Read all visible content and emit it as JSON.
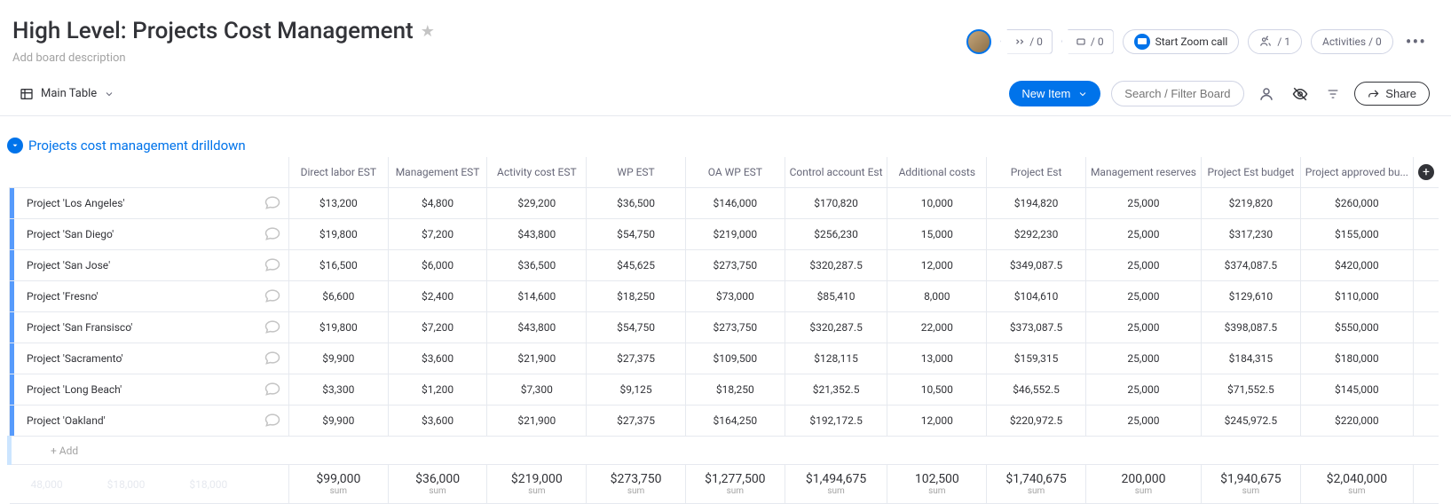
{
  "header": {
    "title": "High Level: Projects Cost Management",
    "desc_placeholder": "Add board description",
    "zoom_label": "Start Zoom call",
    "pill1": "/ 0",
    "pill2": "/ 0",
    "members": "/ 1",
    "activities": "Activities / 0"
  },
  "toolbar": {
    "view_label": "Main Table",
    "new_item": "New Item",
    "search_placeholder": "Search / Filter Board",
    "share": "Share"
  },
  "group": {
    "title": "Projects cost management drilldown",
    "add_label": "+ Add"
  },
  "columns": [
    "Direct labor EST",
    "Management EST",
    "Activity cost EST",
    "WP EST",
    "OA WP EST",
    "Control account Est",
    "Additional costs",
    "Project Est",
    "Management reserves",
    "Project Est budget",
    "Project approved bu..."
  ],
  "rows": [
    {
      "name": "Project 'Los Angeles'",
      "vals": [
        "$13,200",
        "$4,800",
        "$29,200",
        "$36,500",
        "$146,000",
        "$170,820",
        "10,000",
        "$194,820",
        "25,000",
        "$219,820",
        "$260,000"
      ]
    },
    {
      "name": "Project 'San Diego'",
      "vals": [
        "$19,800",
        "$7,200",
        "$43,800",
        "$54,750",
        "$219,000",
        "$256,230",
        "15,000",
        "$292,230",
        "25,000",
        "$317,230",
        "$155,000"
      ]
    },
    {
      "name": "Project 'San Jose'",
      "vals": [
        "$16,500",
        "$6,000",
        "$36,500",
        "$45,625",
        "$273,750",
        "$320,287.5",
        "12,000",
        "$349,087.5",
        "25,000",
        "$374,087.5",
        "$420,000"
      ]
    },
    {
      "name": "Project 'Fresno'",
      "vals": [
        "$6,600",
        "$2,400",
        "$14,600",
        "$18,250",
        "$73,000",
        "$85,410",
        "8,000",
        "$104,610",
        "25,000",
        "$129,610",
        "$110,000"
      ]
    },
    {
      "name": "Project 'San Fransisco'",
      "vals": [
        "$19,800",
        "$7,200",
        "$43,800",
        "$54,750",
        "$273,750",
        "$320,287.5",
        "22,000",
        "$373,087.5",
        "25,000",
        "$398,087.5",
        "$550,000"
      ]
    },
    {
      "name": "Project 'Sacramento'",
      "vals": [
        "$9,900",
        "$3,600",
        "$21,900",
        "$27,375",
        "$109,500",
        "$128,115",
        "13,000",
        "$159,315",
        "25,000",
        "$184,315",
        "$180,000"
      ]
    },
    {
      "name": "Project 'Long Beach'",
      "vals": [
        "$3,300",
        "$1,200",
        "$7,300",
        "$9,125",
        "$18,250",
        "$21,352.5",
        "10,500",
        "$46,552.5",
        "25,000",
        "$71,552.5",
        "$145,000"
      ]
    },
    {
      "name": "Project 'Oakland'",
      "vals": [
        "$9,900",
        "$3,600",
        "$21,900",
        "$27,375",
        "$164,250",
        "$192,172.5",
        "12,000",
        "$220,972.5",
        "25,000",
        "$245,972.5",
        "$220,000"
      ]
    }
  ],
  "sums": [
    "$99,000",
    "$36,000",
    "$219,000",
    "$273,750",
    "$1,277,500",
    "$1,494,675",
    "102,500",
    "$1,740,675",
    "200,000",
    "$1,940,675",
    "$2,040,000"
  ],
  "sum_label": "sum",
  "ghost_sums": [
    "48,000",
    "$18,000",
    "$18,000"
  ],
  "colors": {
    "accent": "#0073ea",
    "row_accent": "#579bfc",
    "border": "#e6e9ef",
    "text_muted": "#676879",
    "text_light": "#a3a3a3"
  }
}
